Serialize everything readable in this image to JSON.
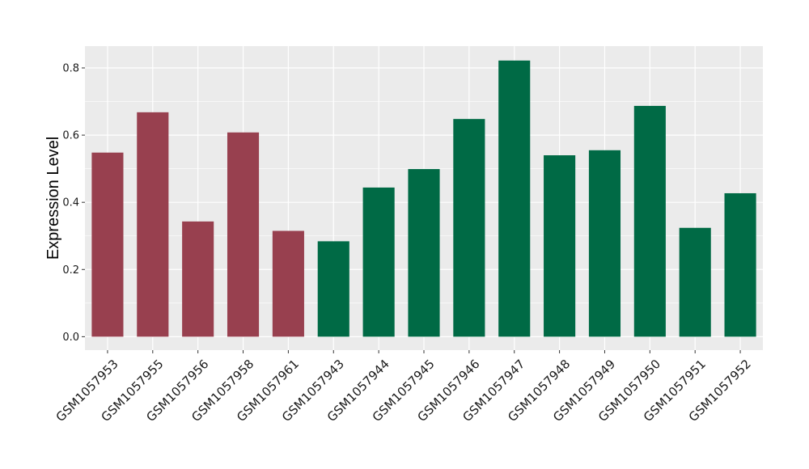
{
  "chart_data": {
    "type": "bar",
    "categories": [
      "GSM1057953",
      "GSM1057955",
      "GSM1057956",
      "GSM1057958",
      "GSM1057961",
      "GSM1057943",
      "GSM1057944",
      "GSM1057945",
      "GSM1057946",
      "GSM1057947",
      "GSM1057948",
      "GSM1057949",
      "GSM1057950",
      "GSM1057951",
      "GSM1057952"
    ],
    "values": [
      0.548,
      0.668,
      0.343,
      0.608,
      0.315,
      0.284,
      0.444,
      0.499,
      0.648,
      0.822,
      0.54,
      0.555,
      0.687,
      0.324,
      0.427
    ],
    "groups": [
      0,
      0,
      0,
      0,
      0,
      1,
      1,
      1,
      1,
      1,
      1,
      1,
      1,
      1,
      1
    ],
    "group_colors": [
      "#98404f",
      "#006a45"
    ],
    "xlabel": "",
    "ylabel": "Expression Level",
    "ylim": [
      -0.04,
      0.865
    ],
    "yticks": [
      0.0,
      0.2,
      0.4,
      0.6,
      0.8
    ],
    "ytick_labels": [
      "0.0",
      "0.2",
      "0.4",
      "0.6",
      "0.8"
    ],
    "grid": true,
    "panel_background": "#ebebeb",
    "grid_color": "#ffffff"
  }
}
